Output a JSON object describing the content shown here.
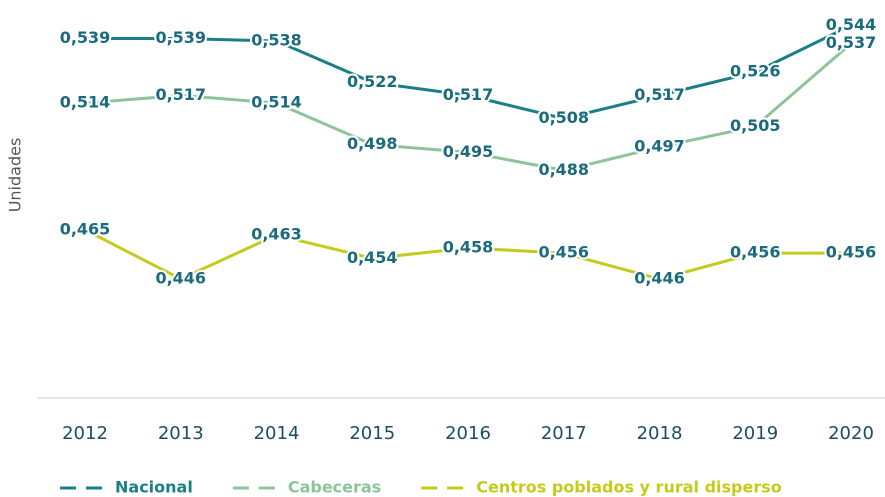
{
  "chart_data": {
    "type": "line",
    "y_label": "Unidades",
    "categories": [
      "2012",
      "2013",
      "2014",
      "2015",
      "2016",
      "2017",
      "2018",
      "2019",
      "2020"
    ],
    "ylim": [
      0.4,
      0.55
    ],
    "series": [
      {
        "name": "Nacional",
        "color": "#1a7f86",
        "values": [
          0.539,
          0.539,
          0.538,
          0.522,
          0.517,
          0.508,
          0.517,
          0.526,
          0.544
        ],
        "value_labels": [
          "0,539",
          "0,539",
          "0,538",
          "0,522",
          "0,517",
          "0,508",
          "0,517",
          "0,526",
          "0,544"
        ]
      },
      {
        "name": "Cabeceras",
        "color": "#8cc49b",
        "values": [
          0.514,
          0.517,
          0.514,
          0.498,
          0.495,
          0.488,
          0.497,
          0.505,
          0.537
        ],
        "value_labels": [
          "0,514",
          "0,517",
          "0,514",
          "0,498",
          "0,495",
          "0,488",
          "0,497",
          "0,505",
          "0,537"
        ]
      },
      {
        "name": "Centros poblados y rural disperso",
        "color": "#c3cc1a",
        "values": [
          0.465,
          0.446,
          0.463,
          0.454,
          0.458,
          0.456,
          0.446,
          0.456,
          0.456
        ],
        "value_labels": [
          "0,465",
          "0,446",
          "0,463",
          "0,454",
          "0,458",
          "0,456",
          "0,446",
          "0,456",
          "0,456"
        ]
      }
    ]
  }
}
